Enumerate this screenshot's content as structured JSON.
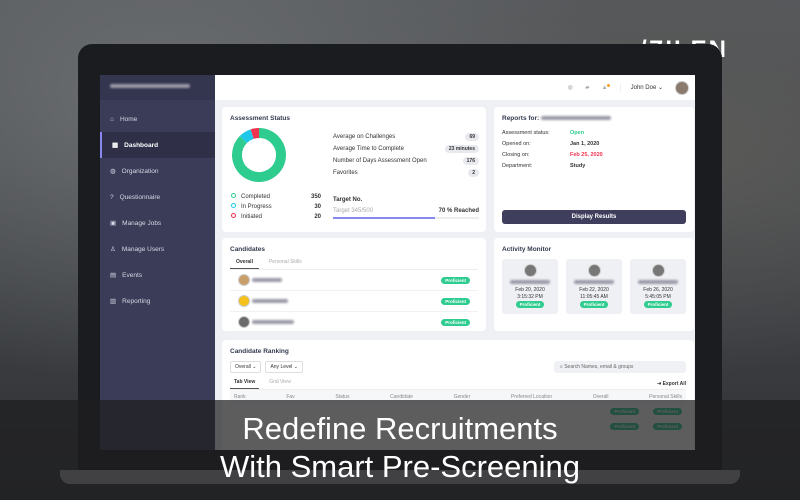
{
  "brand": {
    "logo": "ZILEN"
  },
  "sidebar": {
    "items": [
      {
        "label": "Home",
        "icon": "home-icon"
      },
      {
        "label": "Dashboard",
        "icon": "dashboard-icon",
        "active": true
      },
      {
        "label": "Organization",
        "icon": "globe-icon"
      },
      {
        "label": "Questionnaire",
        "icon": "question-icon"
      },
      {
        "label": "Manage Jobs",
        "icon": "briefcase-icon"
      },
      {
        "label": "Manage Users",
        "icon": "user-icon"
      },
      {
        "label": "Events",
        "icon": "calendar-icon"
      },
      {
        "label": "Reporting",
        "icon": "chart-icon"
      }
    ]
  },
  "topbar": {
    "user": "John Doe"
  },
  "assessment": {
    "title": "Assessment Status",
    "legend": [
      {
        "label": "Completed",
        "value": "350",
        "color": "#2ecc8f"
      },
      {
        "label": "In Progress",
        "value": "30",
        "color": "#1fc8e8"
      },
      {
        "label": "Initiated",
        "value": "20",
        "color": "#f0334f"
      }
    ],
    "stats": [
      {
        "label": "Average on Challenges",
        "value": "69"
      },
      {
        "label": "Average Time to Complete",
        "value": "23 minutes"
      },
      {
        "label": "Number of Days Assessment Open",
        "value": "176"
      },
      {
        "label": "Favorites",
        "value": "2"
      }
    ],
    "target_title": "Target No.",
    "target_text": "Target 345/500",
    "target_reached": "70 % Reached",
    "target_progress": 70
  },
  "reports": {
    "title": "Reports for:",
    "rows": [
      {
        "label": "Assessment status:",
        "value": "Open",
        "color": "#2ecc8f"
      },
      {
        "label": "Opened on:",
        "value": "Jan 1, 2020"
      },
      {
        "label": "Closing on:",
        "value": "Feb 25, 2020",
        "color": "#f0334f"
      },
      {
        "label": "Department:",
        "value": "Study"
      }
    ],
    "button": "Display Results"
  },
  "candidates": {
    "title": "Candidates",
    "tabs": [
      "Overall",
      "Personal Skills"
    ],
    "badge": "Proficient"
  },
  "activity": {
    "title": "Activity Monitor",
    "items": [
      {
        "date": "Feb 20, 2020",
        "time": "3:15:32 PM",
        "badge": "Proficient"
      },
      {
        "date": "Feb 22, 2020",
        "time": "11:05:45 AM",
        "badge": "Proficient"
      },
      {
        "date": "Feb 26, 2020",
        "time": "5:45:05 PM",
        "badge": "Proficient"
      }
    ]
  },
  "ranking": {
    "title": "Candidate Ranking",
    "filters": [
      "Overall",
      "Any Level"
    ],
    "search_placeholder": "Search Names, email & groups",
    "tabs": [
      "Tab View",
      "Grid View"
    ],
    "export": "Export All",
    "columns": [
      "Rank",
      "Fav",
      "Status",
      "Candidate",
      "Gender",
      "Preferred Location",
      "Overall",
      "Personal Skills"
    ],
    "badge": "Proficient"
  },
  "banner": {
    "line1": "Redefine Recruitments",
    "line2": "With Smart Pre-Screening"
  }
}
